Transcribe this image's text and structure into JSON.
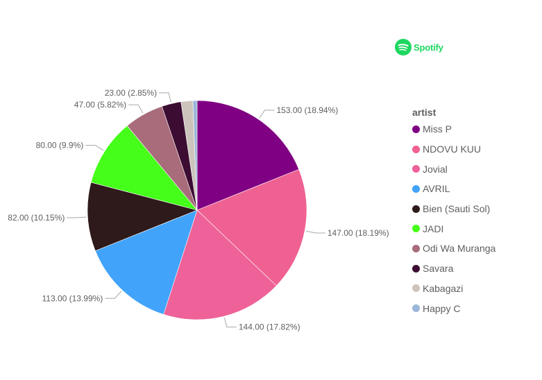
{
  "brand": {
    "name": "Spotify",
    "icon": "spotify-icon",
    "color": "#1ed760"
  },
  "chart_data": {
    "type": "pie",
    "legend_title": "artist",
    "legend_position": "right",
    "slices": [
      {
        "label": "Miss P",
        "value": 153.0,
        "percent": 18.94,
        "display": "153.00 (18.94%)",
        "color": "#7f0082"
      },
      {
        "label": "NDOVU KUU",
        "value": 147.0,
        "percent": 18.19,
        "display": "147.00 (18.19%)",
        "color": "#ef6192"
      },
      {
        "label": "Jovial",
        "value": 144.0,
        "percent": 17.82,
        "display": "144.00 (17.82%)",
        "color": "#ee6299"
      },
      {
        "label": "AVRIL",
        "value": 113.0,
        "percent": 13.99,
        "display": "113.00 (13.99%)",
        "color": "#41a3f9"
      },
      {
        "label": "Bien (Sauti Sol)",
        "value": 82.0,
        "percent": 10.15,
        "display": "82.00 (10.15%)",
        "color": "#2e1a1a"
      },
      {
        "label": "JADI",
        "value": 80.0,
        "percent": 9.9,
        "display": "80.00 (9.9%)",
        "color": "#45ff1a"
      },
      {
        "label": "Odi Wa Muranga",
        "value": 47.0,
        "percent": 5.82,
        "display": "47.00 (5.82%)",
        "color": "#a86c7b"
      },
      {
        "label": "Savara",
        "value": 23.0,
        "percent": 2.85,
        "display": "23.00 (2.85%)",
        "color": "#3c0c32"
      },
      {
        "label": "Kabagazi",
        "value": 14.0,
        "percent": 1.73,
        "display": "",
        "color": "#cdc5bd"
      },
      {
        "label": "Happy C",
        "value": 5.0,
        "percent": 0.62,
        "display": "",
        "color": "#9ab7d9"
      }
    ]
  }
}
